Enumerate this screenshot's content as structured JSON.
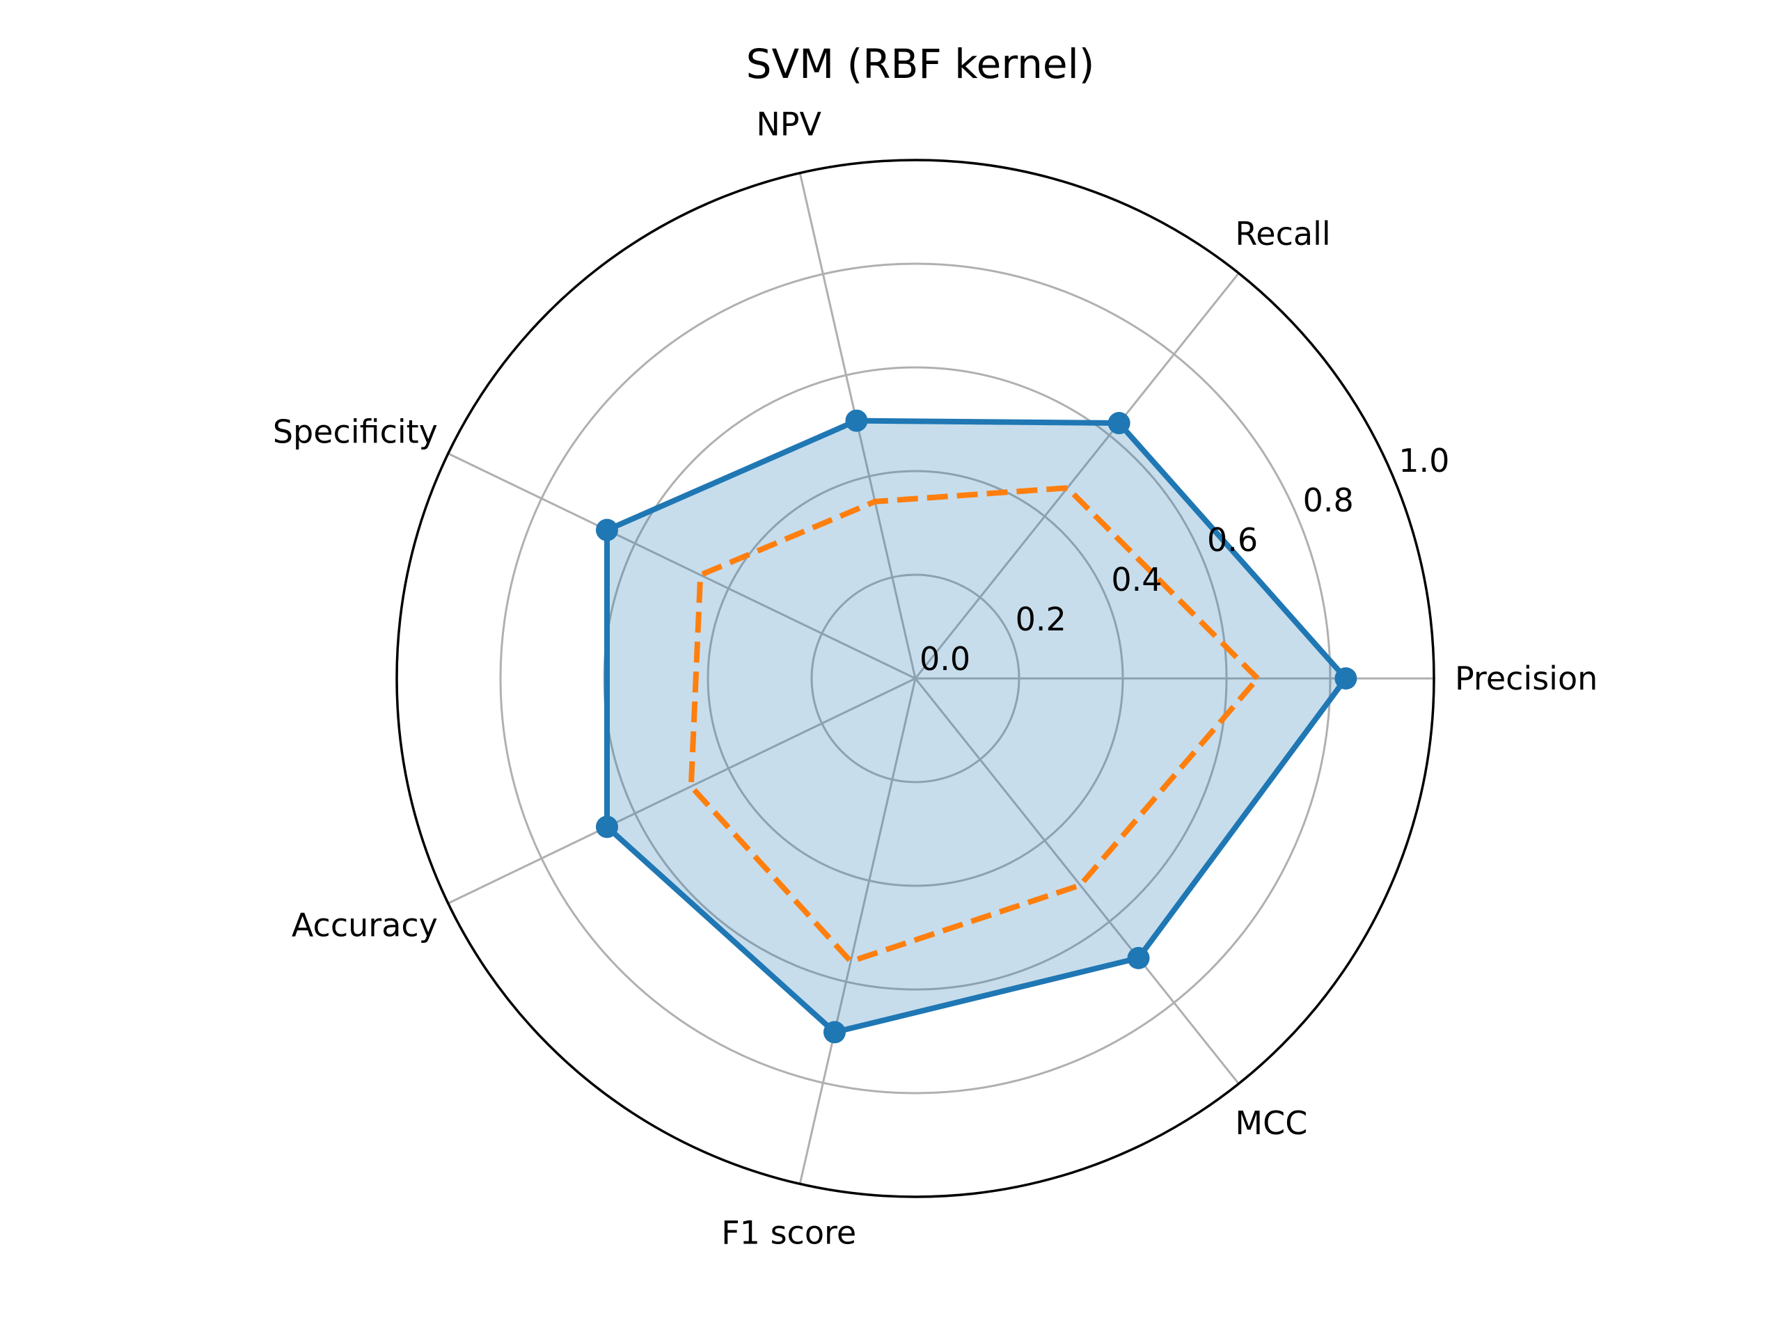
{
  "chart_data": {
    "type": "radar",
    "title": "SVM (RBF kernel)",
    "categories": [
      "Precision",
      "Recall",
      "NPV",
      "Specificity",
      "Accuracy",
      "F1 score",
      "MCC"
    ],
    "rlim": [
      0,
      1.0
    ],
    "radial_ticks": [
      0.0,
      0.2,
      0.4,
      0.6,
      0.8,
      1.0
    ],
    "radial_tick_labels": [
      "0.0",
      "0.2",
      "0.4",
      "0.6",
      "0.8",
      "1.0"
    ],
    "grid": true,
    "series": [
      {
        "values": [
          0.83,
          0.63,
          0.51,
          0.66,
          0.66,
          0.7,
          0.69
        ],
        "color": "#1f77b4",
        "fill": "#1f77b4",
        "fill_opacity": 0.25,
        "line_style": "solid",
        "markers": true
      },
      {
        "values": [
          0.66,
          0.47,
          0.35,
          0.46,
          0.48,
          0.56,
          0.51
        ],
        "color": "#ff7f0e",
        "line_style": "dashed",
        "markers": false
      }
    ]
  }
}
